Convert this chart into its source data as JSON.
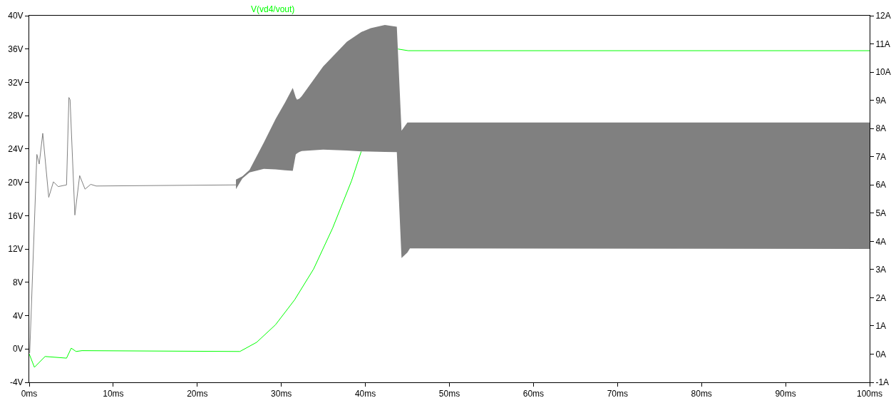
{
  "chart_data": {
    "type": "line",
    "xlim": [
      0,
      100
    ],
    "xticks": [
      {
        "value": 0,
        "label": "0ms"
      },
      {
        "value": 10,
        "label": "10ms"
      },
      {
        "value": 20,
        "label": "20ms"
      },
      {
        "value": 30,
        "label": "30ms"
      },
      {
        "value": 40,
        "label": "40ms"
      },
      {
        "value": 50,
        "label": "50ms"
      },
      {
        "value": 60,
        "label": "60ms"
      },
      {
        "value": 70,
        "label": "70ms"
      },
      {
        "value": 80,
        "label": "80ms"
      },
      {
        "value": 90,
        "label": "90ms"
      },
      {
        "value": 100,
        "label": "100ms"
      }
    ],
    "ylim": [
      -4,
      40
    ],
    "yticks": [
      {
        "value": -4,
        "label": "-4V"
      },
      {
        "value": 0,
        "label": "0V"
      },
      {
        "value": 4,
        "label": "4V"
      },
      {
        "value": 8,
        "label": "8V"
      },
      {
        "value": 12,
        "label": "12V"
      },
      {
        "value": 16,
        "label": "16V"
      },
      {
        "value": 20,
        "label": "20V"
      },
      {
        "value": 24,
        "label": "24V"
      },
      {
        "value": 28,
        "label": "28V"
      },
      {
        "value": 32,
        "label": "32V"
      },
      {
        "value": 36,
        "label": "36V"
      },
      {
        "value": 40,
        "label": "40V"
      }
    ],
    "y2lim": [
      -1,
      12
    ],
    "y2ticks": [
      {
        "value": -1,
        "label": "-1A"
      },
      {
        "value": 0,
        "label": "0A"
      },
      {
        "value": 1,
        "label": "1A"
      },
      {
        "value": 2,
        "label": "2A"
      },
      {
        "value": 3,
        "label": "3A"
      },
      {
        "value": 4,
        "label": "4A"
      },
      {
        "value": 5,
        "label": "5A"
      },
      {
        "value": 6,
        "label": "6A"
      },
      {
        "value": 7,
        "label": "7A"
      },
      {
        "value": 8,
        "label": "8A"
      },
      {
        "value": 9,
        "label": "9A"
      },
      {
        "value": 10,
        "label": "10A"
      },
      {
        "value": 11,
        "label": "11A"
      },
      {
        "value": 12,
        "label": "12A"
      }
    ],
    "grid": false,
    "legend": false,
    "series": [
      {
        "color": "#808080",
        "axis": "y2",
        "x": [
          0.06,
          0.91,
          1.19,
          1.61,
          2.32,
          2.88,
          3.45,
          4.44,
          4.72,
          4.86,
          5.43,
          6.0,
          6.64,
          7.32,
          7.97,
          24.6,
          25.36,
          26.21,
          27.91,
          29.32,
          30.45,
          31.36,
          31.72,
          31.87,
          32.15,
          32.43,
          34.97,
          37.8,
          39.5,
          40.63,
          42.32,
          43.74,
          44.3,
          45.0,
          45.3,
          100
        ],
        "values": [
          0.04,
          7.08,
          6.74,
          7.83,
          5.56,
          6.11,
          5.94,
          6.0,
          9.1,
          9.02,
          4.93,
          6.33,
          5.85,
          6.02,
          5.96,
          6.0,
          null,
          null,
          null,
          null,
          null,
          null,
          null,
          null,
          null,
          null,
          null,
          null,
          null,
          null,
          null,
          null,
          null,
          null,
          null,
          null
        ],
        "lower": [
          null,
          null,
          null,
          null,
          null,
          null,
          null,
          null,
          null,
          null,
          null,
          null,
          null,
          null,
          null,
          5.85,
          6.23,
          6.44,
          6.57,
          6.55,
          6.52,
          6.5,
          7.08,
          7.12,
          7.17,
          7.2,
          7.25,
          7.22,
          7.19,
          7.18,
          7.17,
          7.16,
          3.41,
          3.6,
          3.75,
          3.73
        ],
        "upper": [
          null,
          null,
          null,
          null,
          null,
          null,
          null,
          null,
          null,
          null,
          null,
          null,
          null,
          null,
          null,
          6.19,
          6.3,
          6.53,
          7.5,
          8.34,
          8.93,
          9.44,
          9.1,
          9.02,
          9.06,
          9.15,
          10.2,
          11.08,
          11.42,
          11.56,
          11.67,
          11.61,
          7.92,
          8.21,
          8.21,
          8.21
        ]
      },
      {
        "name": "V(vd4/vout)",
        "color": "#00ff00",
        "x": [
          0,
          0.62,
          1.89,
          4.44,
          5.0,
          5.57,
          6.28,
          25.07,
          27.06,
          29.3,
          31.58,
          33.84,
          36.1,
          38.36,
          39.5,
          41.5,
          43.87,
          45.1,
          100
        ],
        "values": [
          -0.6,
          -2.2,
          -0.9,
          -1.1,
          0.1,
          -0.3,
          -0.2,
          -0.3,
          0.8,
          2.9,
          5.9,
          9.6,
          14.5,
          20.2,
          23.7,
          null,
          36.0,
          35.8,
          35.8
        ]
      }
    ]
  }
}
